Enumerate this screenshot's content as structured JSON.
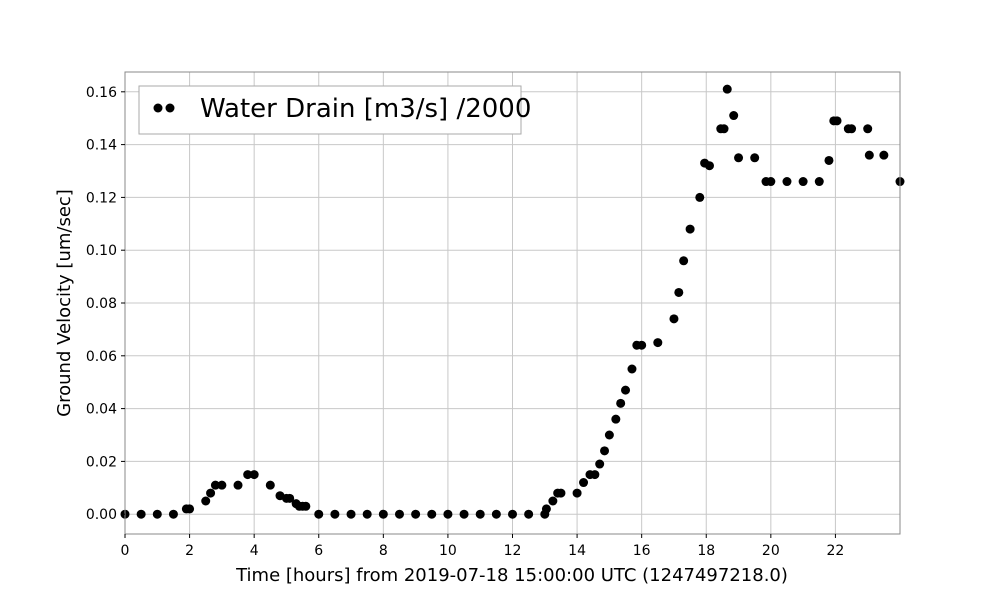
{
  "chart_data": {
    "type": "scatter",
    "xlabel": "Time [hours] from 2019-07-18 15:00:00 UTC (1247497218.0)",
    "ylabel": "Ground Velocity [um/sec]",
    "xlim": [
      0,
      24
    ],
    "ylim": [
      -0.0075,
      0.1675
    ],
    "x_ticks": [
      0,
      2,
      4,
      6,
      8,
      10,
      12,
      14,
      16,
      18,
      20,
      22
    ],
    "x_tick_labels": [
      "0",
      "2",
      "4",
      "6",
      "8",
      "10",
      "12",
      "14",
      "16",
      "18",
      "20",
      "22"
    ],
    "y_ticks": [
      0.0,
      0.02,
      0.04,
      0.06,
      0.08,
      0.1,
      0.12,
      0.14,
      0.16
    ],
    "y_tick_labels": [
      "0.00",
      "0.02",
      "0.04",
      "0.06",
      "0.08",
      "0.10",
      "0.12",
      "0.14",
      "0.16"
    ],
    "grid": true,
    "legend": {
      "placement": "top-left",
      "entries": [
        {
          "label": "Water Drain [m3/s] /2000",
          "color": "#000000"
        }
      ]
    },
    "series": [
      {
        "name": "Water Drain [m3/s] /2000",
        "color": "#000000",
        "marker": "circle",
        "x": [
          0.0,
          0.5,
          1.0,
          1.5,
          1.9,
          2.0,
          2.5,
          2.65,
          2.8,
          3.0,
          3.5,
          3.8,
          4.0,
          4.5,
          4.8,
          5.0,
          5.1,
          5.3,
          5.4,
          5.5,
          5.6,
          6.0,
          6.5,
          7.0,
          7.5,
          8.0,
          8.5,
          9.0,
          9.5,
          10.0,
          10.5,
          11.0,
          11.5,
          12.0,
          12.5,
          13.0,
          13.05,
          13.25,
          13.4,
          13.5,
          14.0,
          14.2,
          14.4,
          14.55,
          14.7,
          14.85,
          15.0,
          15.2,
          15.35,
          15.5,
          15.7,
          15.85,
          16.0,
          16.5,
          17.0,
          17.15,
          17.3,
          17.5,
          17.8,
          17.95,
          18.1,
          18.45,
          18.55,
          18.65,
          18.85,
          19.0,
          19.5,
          19.85,
          20.0,
          20.5,
          21.0,
          21.5,
          21.8,
          21.95,
          22.05,
          22.4,
          22.5,
          23.0,
          23.05,
          23.5,
          24.0
        ],
        "y": [
          0.0,
          0.0,
          0.0,
          0.0,
          0.002,
          0.002,
          0.005,
          0.008,
          0.011,
          0.011,
          0.011,
          0.015,
          0.015,
          0.011,
          0.007,
          0.006,
          0.006,
          0.004,
          0.003,
          0.003,
          0.003,
          0.0,
          0.0,
          0.0,
          0.0,
          0.0,
          0.0,
          0.0,
          0.0,
          0.0,
          0.0,
          0.0,
          0.0,
          0.0,
          0.0,
          0.0,
          0.002,
          0.005,
          0.008,
          0.008,
          0.008,
          0.012,
          0.015,
          0.015,
          0.019,
          0.024,
          0.03,
          0.036,
          0.042,
          0.047,
          0.055,
          0.064,
          0.064,
          0.065,
          0.074,
          0.084,
          0.096,
          0.108,
          0.12,
          0.133,
          0.132,
          0.146,
          0.146,
          0.161,
          0.151,
          0.135,
          0.135,
          0.126,
          0.126,
          0.126,
          0.126,
          0.126,
          0.134,
          0.149,
          0.149,
          0.146,
          0.146,
          0.146,
          0.136,
          0.136,
          0.126
        ]
      }
    ]
  }
}
